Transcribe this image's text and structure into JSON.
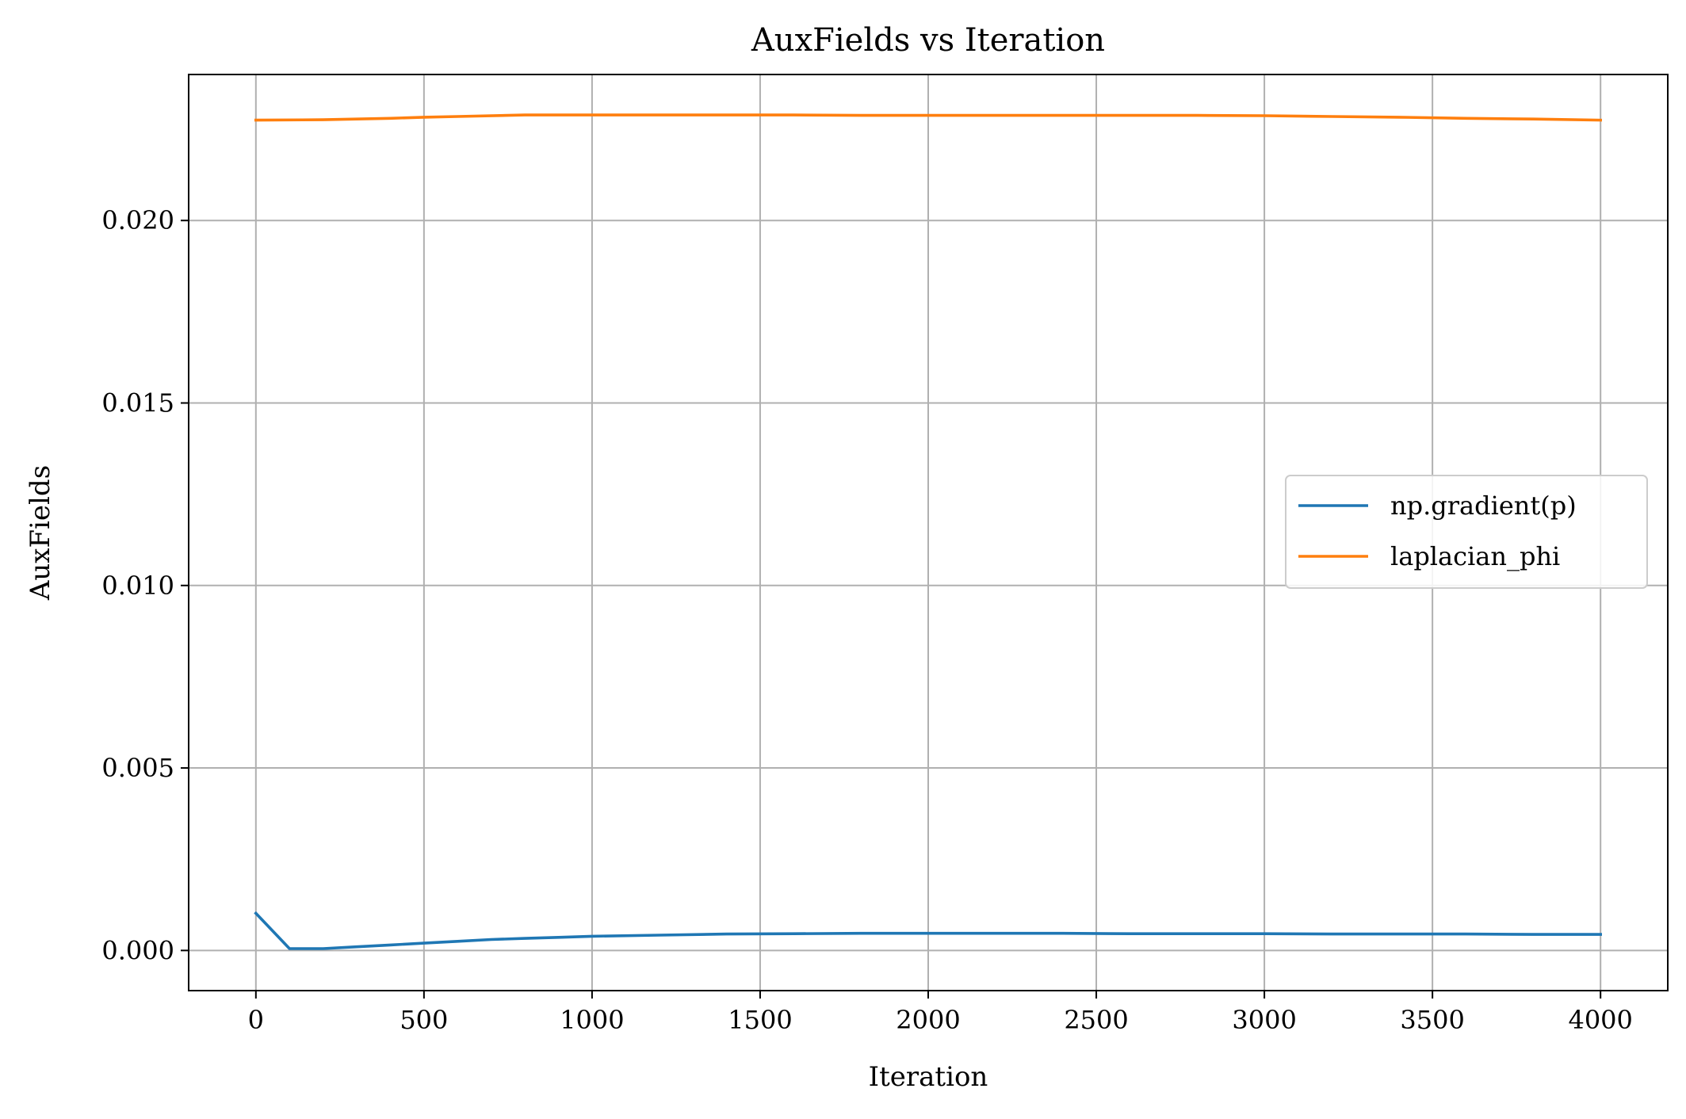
{
  "chart_data": {
    "type": "line",
    "title": "AuxFields vs Iteration",
    "xlabel": "Iteration",
    "ylabel": "AuxFields",
    "xlim": [
      -200,
      4200
    ],
    "ylim": [
      -0.0011,
      0.024
    ],
    "xticks": [
      0,
      500,
      1000,
      1500,
      2000,
      2500,
      3000,
      3500,
      4000
    ],
    "xtick_labels": [
      "0",
      "500",
      "1000",
      "1500",
      "2000",
      "2500",
      "3000",
      "3500",
      "4000"
    ],
    "yticks": [
      0.0,
      0.005,
      0.01,
      0.015,
      0.02
    ],
    "ytick_labels": [
      "0.000",
      "0.005",
      "0.010",
      "0.015",
      "0.020"
    ],
    "grid": true,
    "legend_position": "center-right",
    "series": [
      {
        "name": "np.gradient(p)",
        "color": "#1f77b4",
        "x": [
          0,
          100,
          200,
          300,
          400,
          500,
          600,
          700,
          800,
          900,
          1000,
          1200,
          1400,
          1600,
          1800,
          2000,
          2200,
          2400,
          2600,
          2800,
          3000,
          3200,
          3400,
          3600,
          3800,
          4000
        ],
        "y": [
          0.00102,
          5e-05,
          5e-05,
          0.0001,
          0.00015,
          0.0002,
          0.00025,
          0.0003,
          0.00033,
          0.00036,
          0.00039,
          0.00042,
          0.00045,
          0.00046,
          0.00047,
          0.00047,
          0.00047,
          0.00047,
          0.00046,
          0.00046,
          0.00046,
          0.00045,
          0.00045,
          0.00045,
          0.00044,
          0.00044
        ]
      },
      {
        "name": "laplacian_phi",
        "color": "#ff7f0e",
        "x": [
          0,
          200,
          400,
          500,
          600,
          800,
          1000,
          1200,
          1400,
          1600,
          1800,
          2000,
          2200,
          2400,
          2600,
          2800,
          3000,
          3200,
          3400,
          3600,
          3800,
          4000
        ],
        "y": [
          0.02275,
          0.02276,
          0.0228,
          0.02283,
          0.02285,
          0.02289,
          0.02289,
          0.02289,
          0.02289,
          0.02289,
          0.02288,
          0.02288,
          0.02288,
          0.02288,
          0.02288,
          0.02288,
          0.02287,
          0.02285,
          0.02283,
          0.0228,
          0.02278,
          0.02275
        ]
      }
    ]
  }
}
